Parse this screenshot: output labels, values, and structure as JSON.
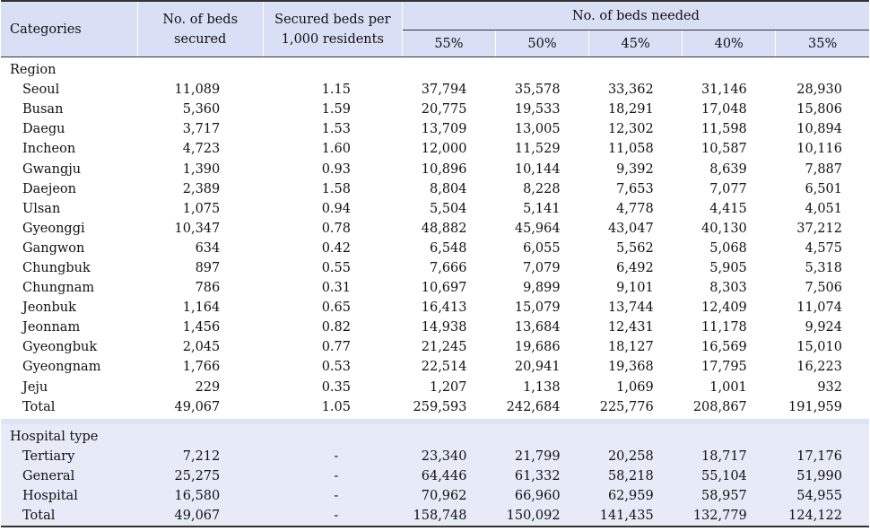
{
  "headers": {
    "categories": "Categories",
    "beds_secured": [
      "No. of beds",
      "secured"
    ],
    "per_1000": [
      "Secured beds per",
      "1,000 residents"
    ],
    "needed": "No. of beds needed",
    "pcts": [
      "55%",
      "50%",
      "45%",
      "40%",
      "35%"
    ]
  },
  "sections": [
    {
      "title": "Region",
      "rows": [
        {
          "name": "Seoul",
          "beds": "11,089",
          "per": "1.15",
          "needed": [
            "37,794",
            "35,578",
            "33,362",
            "31,146",
            "28,930"
          ]
        },
        {
          "name": "Busan",
          "beds": "5,360",
          "per": "1.59",
          "needed": [
            "20,775",
            "19,533",
            "18,291",
            "17,048",
            "15,806"
          ]
        },
        {
          "name": "Daegu",
          "beds": "3,717",
          "per": "1.53",
          "needed": [
            "13,709",
            "13,005",
            "12,302",
            "11,598",
            "10,894"
          ]
        },
        {
          "name": "Incheon",
          "beds": "4,723",
          "per": "1.60",
          "needed": [
            "12,000",
            "11,529",
            "11,058",
            "10,587",
            "10,116"
          ]
        },
        {
          "name": "Gwangju",
          "beds": "1,390",
          "per": "0.93",
          "needed": [
            "10,896",
            "10,144",
            "9,392",
            "8,639",
            "7,887"
          ]
        },
        {
          "name": "Daejeon",
          "beds": "2,389",
          "per": "1.58",
          "needed": [
            "8,804",
            "8,228",
            "7,653",
            "7,077",
            "6,501"
          ]
        },
        {
          "name": "Ulsan",
          "beds": "1,075",
          "per": "0.94",
          "needed": [
            "5,504",
            "5,141",
            "4,778",
            "4,415",
            "4,051"
          ]
        },
        {
          "name": "Gyeonggi",
          "beds": "10,347",
          "per": "0.78",
          "needed": [
            "48,882",
            "45,964",
            "43,047",
            "40,130",
            "37,212"
          ]
        },
        {
          "name": "Gangwon",
          "beds": "634",
          "per": "0.42",
          "needed": [
            "6,548",
            "6,055",
            "5,562",
            "5,068",
            "4,575"
          ]
        },
        {
          "name": "Chungbuk",
          "beds": "897",
          "per": "0.55",
          "needed": [
            "7,666",
            "7,079",
            "6,492",
            "5,905",
            "5,318"
          ]
        },
        {
          "name": "Chungnam",
          "beds": "786",
          "per": "0.31",
          "needed": [
            "10,697",
            "9,899",
            "9,101",
            "8,303",
            "7,506"
          ]
        },
        {
          "name": "Jeonbuk",
          "beds": "1,164",
          "per": "0.65",
          "needed": [
            "16,413",
            "15,079",
            "13,744",
            "12,409",
            "11,074"
          ]
        },
        {
          "name": "Jeonnam",
          "beds": "1,456",
          "per": "0.82",
          "needed": [
            "14,938",
            "13,684",
            "12,431",
            "11,178",
            "9,924"
          ]
        },
        {
          "name": "Gyeongbuk",
          "beds": "2,045",
          "per": "0.77",
          "needed": [
            "21,245",
            "19,686",
            "18,127",
            "16,569",
            "15,010"
          ]
        },
        {
          "name": "Gyeongnam",
          "beds": "1,766",
          "per": "0.53",
          "needed": [
            "22,514",
            "20,941",
            "19,368",
            "17,795",
            "16,223"
          ]
        },
        {
          "name": "Jeju",
          "beds": "229",
          "per": "0.35",
          "needed": [
            "1,207",
            "1,138",
            "1,069",
            "1,001",
            "932"
          ]
        },
        {
          "name": "Total",
          "beds": "49,067",
          "per": "1.05",
          "needed": [
            "259,593",
            "242,684",
            "225,776",
            "208,867",
            "191,959"
          ]
        }
      ]
    },
    {
      "title": "Hospital type",
      "rows": [
        {
          "name": "Tertiary",
          "beds": "7,212",
          "per": "-",
          "needed": [
            "23,340",
            "21,799",
            "20,258",
            "18,717",
            "17,176"
          ]
        },
        {
          "name": "General",
          "beds": "25,275",
          "per": "-",
          "needed": [
            "64,446",
            "61,332",
            "58,218",
            "55,104",
            "51,990"
          ]
        },
        {
          "name": "Hospital",
          "beds": "16,580",
          "per": "-",
          "needed": [
            "70,962",
            "66,960",
            "62,959",
            "58,957",
            "54,955"
          ]
        },
        {
          "name": "Total",
          "beds": "49,067",
          "per": "-",
          "needed": [
            "158,748",
            "150,092",
            "141,435",
            "132,779",
            "124,122"
          ]
        }
      ]
    }
  ]
}
